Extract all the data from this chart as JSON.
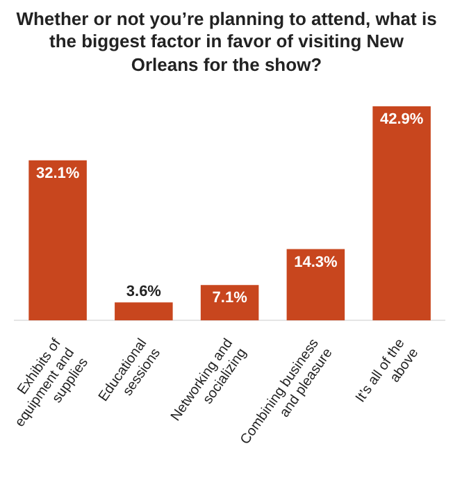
{
  "chart_data": {
    "type": "bar",
    "title": "Whether or not you’re planning to attend, what is the biggest factor in favor of visiting New Orleans for the show?",
    "categories": [
      "Exhibits of equipment and supplies",
      "Educational sessions",
      "Networking and socializing",
      "Combining business and pleasure",
      "It’s all of the above"
    ],
    "values": [
      32.1,
      3.6,
      7.1,
      14.3,
      42.9
    ],
    "value_labels": [
      "32.1%",
      "3.6%",
      "7.1%",
      "14.3%",
      "42.9%"
    ],
    "color": "#c8461e",
    "tick_labels": "x"
  }
}
